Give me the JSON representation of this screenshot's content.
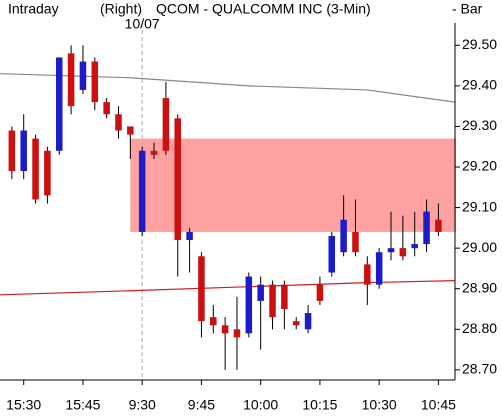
{
  "chart_data": {
    "type": "candlestick",
    "header": [
      "Intraday",
      "(Right)",
      "QCOM - QUALCOMM INC  (3-Min)",
      "-  Bar"
    ],
    "session_label": "10/07",
    "session_start": 11,
    "up_color": "#1c1cc8",
    "down_color": "#cc1010",
    "x": [
      0,
      1,
      2,
      3,
      4,
      5,
      6,
      7,
      8,
      9,
      10,
      11,
      12,
      13,
      14,
      15,
      16,
      17,
      18,
      19,
      20,
      21,
      22,
      23,
      24,
      25,
      26,
      27,
      28,
      29,
      30,
      31,
      32,
      33,
      34,
      35,
      36
    ],
    "open": [
      29.29,
      29.19,
      29.27,
      29.24,
      29.24,
      29.48,
      29.39,
      29.46,
      29.36,
      29.33,
      29.3,
      29.04,
      29.24,
      29.37,
      29.32,
      29.02,
      28.98,
      28.83,
      28.81,
      28.8,
      28.79,
      28.87,
      28.91,
      28.91,
      28.82,
      28.8,
      28.91,
      28.94,
      28.99,
      29.04,
      28.96,
      28.91,
      28.99,
      29.0,
      29.0,
      29.01,
      29.07
    ],
    "high": [
      29.3,
      29.33,
      29.28,
      29.25,
      29.47,
      29.5,
      29.5,
      29.47,
      29.37,
      29.35,
      29.3,
      29.25,
      29.26,
      29.41,
      29.33,
      29.05,
      28.99,
      28.86,
      28.83,
      28.88,
      28.94,
      28.93,
      28.92,
      28.92,
      28.83,
      28.86,
      28.93,
      29.04,
      29.13,
      29.12,
      28.98,
      29.0,
      29.09,
      29.08,
      29.09,
      29.12,
      29.11
    ],
    "low": [
      29.17,
      29.17,
      29.11,
      29.11,
      29.23,
      29.33,
      29.38,
      29.34,
      29.32,
      29.27,
      29.22,
      29.03,
      29.22,
      29.23,
      28.93,
      28.94,
      28.78,
      28.79,
      28.7,
      28.7,
      28.78,
      28.75,
      28.8,
      28.8,
      28.8,
      28.79,
      28.86,
      28.93,
      28.98,
      28.98,
      28.86,
      28.9,
      28.97,
      28.97,
      28.98,
      28.99,
      29.03
    ],
    "close": [
      29.19,
      29.29,
      29.12,
      29.13,
      29.47,
      29.35,
      29.46,
      29.36,
      29.33,
      29.29,
      29.28,
      29.24,
      29.23,
      29.24,
      29.02,
      29.04,
      28.82,
      28.81,
      28.79,
      28.78,
      28.93,
      28.91,
      28.83,
      28.85,
      28.81,
      28.84,
      28.87,
      29.03,
      29.07,
      28.99,
      28.91,
      28.99,
      29.0,
      28.98,
      29.01,
      29.09,
      29.04
    ],
    "lines": [
      {
        "color": "#888888",
        "x": [
          -1,
          10,
          20,
          30,
          37.4
        ],
        "values": [
          29.43,
          29.42,
          29.4,
          29.39,
          29.36
        ]
      },
      {
        "color": "#cc2020",
        "x": [
          -1,
          10,
          20,
          30,
          37.4
        ],
        "values": [
          28.885,
          28.895,
          28.905,
          28.915,
          28.92
        ]
      }
    ],
    "zone": {
      "color": "#ff9090",
      "x0": 10,
      "y": [
        29.04,
        29.27
      ]
    },
    "xlim": [
      -1,
      37.4
    ],
    "xticks": [
      {
        "value": 1,
        "label": "15:30"
      },
      {
        "value": 6,
        "label": "15:45"
      },
      {
        "value": 11,
        "label": "9:30"
      },
      {
        "value": 16,
        "label": "9:45"
      },
      {
        "value": 21,
        "label": "10:00"
      },
      {
        "value": 26,
        "label": "10:15"
      },
      {
        "value": 31,
        "label": "10:30"
      },
      {
        "value": 36,
        "label": "10:45"
      }
    ],
    "ylim": [
      28.675,
      29.555
    ],
    "yticks": [
      {
        "value": 28.7,
        "label": "28.70"
      },
      {
        "value": 28.8,
        "label": "28.80"
      },
      {
        "value": 28.9,
        "label": "28.90"
      },
      {
        "value": 29.0,
        "label": "29.00"
      },
      {
        "value": 29.1,
        "label": "29.10"
      },
      {
        "value": 29.2,
        "label": "29.20"
      },
      {
        "value": 29.3,
        "label": "29.30"
      },
      {
        "value": 29.4,
        "label": "29.40"
      },
      {
        "value": 29.5,
        "label": "29.50"
      }
    ]
  }
}
